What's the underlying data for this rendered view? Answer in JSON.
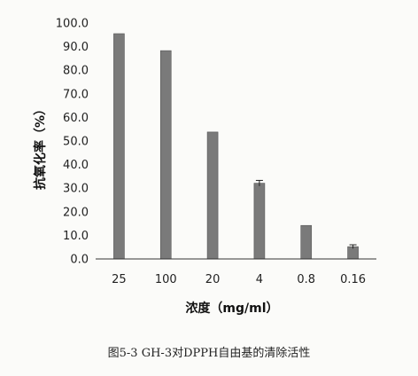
{
  "chart_data": {
    "type": "bar",
    "categories": [
      "25",
      "100",
      "20",
      "4",
      "0.8",
      "0.16"
    ],
    "values": [
      95.5,
      88.3,
      53.8,
      32.1,
      14.2,
      5.2
    ],
    "errors": [
      0,
      0,
      0,
      1.2,
      0,
      0.8
    ],
    "xlabel": "浓度（mg/ml）",
    "ylabel": "抗氧化率（%）",
    "ylim": [
      0,
      100
    ],
    "yticks": [
      "0.0",
      "10.0",
      "20.0",
      "30.0",
      "40.0",
      "50.0",
      "60.0",
      "70.0",
      "80.0",
      "90.0",
      "100.0"
    ],
    "grid": false,
    "bar_color": "#7a7a7a"
  },
  "caption": "图5-3 GH-3对DPPH自由基的清除活性"
}
